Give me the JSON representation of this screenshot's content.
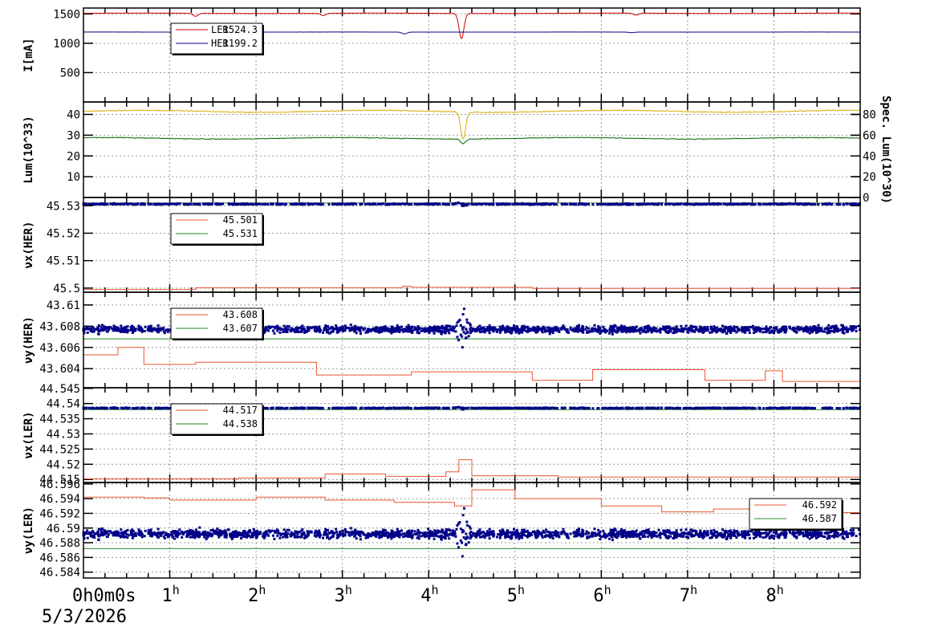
{
  "colors": {
    "ler": "#cc0000",
    "her": "#000080",
    "ref": "#ee5533",
    "green": "#228822",
    "lum_total": "#ddaa00",
    "lum_spec": "#006600",
    "points": "#000088",
    "grid": "#999999"
  },
  "date_label": "5/3/2026",
  "chart_data": [
    {
      "id": "current",
      "type": "line",
      "ylabel": "I[mA]",
      "ylim": [
        0,
        1600
      ],
      "yticks": [
        500,
        1000,
        1500
      ],
      "legend": {
        "position": "top-left",
        "entries": [
          {
            "name": "LER",
            "value": "1524.3",
            "color": "ler"
          },
          {
            "name": "HER",
            "value": "1199.2",
            "color": "her"
          }
        ]
      },
      "series": [
        {
          "name": "LER",
          "base": 1510,
          "noise": 6,
          "dips": [
            [
              4.38,
              1080
            ],
            [
              1.3,
              1460
            ],
            [
              2.78,
              1470
            ],
            [
              6.4,
              1480
            ]
          ],
          "color": "ler"
        },
        {
          "name": "HER",
          "base": 1190,
          "noise": 1,
          "dips": [
            [
              3.72,
              1160
            ],
            [
              6.35,
              1180
            ]
          ],
          "color": "her"
        }
      ]
    },
    {
      "id": "luminosity",
      "type": "line",
      "ylabel": "Lum(10^33)",
      "ylabel_right": "Spec. Lum(10^30)",
      "ylim": [
        0,
        46
      ],
      "yticks": [
        10,
        20,
        30,
        40
      ],
      "y2lim": [
        0,
        92
      ],
      "y2ticks": [
        0,
        20,
        40,
        60,
        80
      ],
      "series": [
        {
          "name": "lum_total",
          "base": 41.5,
          "noise": 0.8,
          "dips": [
            [
              4.4,
              28
            ]
          ],
          "color": "lum_total"
        },
        {
          "name": "lum_spec",
          "base": 28.5,
          "noise": 0.6,
          "dips": [
            [
              4.4,
              26
            ]
          ],
          "color": "lum_spec"
        }
      ]
    },
    {
      "id": "nux_her",
      "type": "scatter",
      "ylabel": "νx(HER)",
      "ylim": [
        45.4985,
        45.533
      ],
      "yticks": [
        "45.5",
        "45.51",
        "45.52",
        "45.53"
      ],
      "legend": {
        "position": "top-left",
        "entries": [
          {
            "value": "45.501",
            "color": "ref"
          },
          {
            "value": "45.531",
            "color": "green"
          }
        ]
      },
      "meas": {
        "base": 45.5306,
        "noise": 0.0003
      },
      "ref_line": [
        [
          0,
          45.4995
        ],
        [
          1.3,
          45.5001
        ],
        [
          3.7,
          45.5007
        ],
        [
          3.8,
          45.5003
        ],
        [
          5.2,
          45.4999
        ],
        [
          9,
          45.4999
        ]
      ],
      "green_line": 45.531
    },
    {
      "id": "nuy_her",
      "type": "scatter",
      "ylabel": "νy(HER)",
      "ylim": [
        43.6022,
        43.6112
      ],
      "yticks": [
        "43.604",
        "43.606",
        "43.608",
        "43.61"
      ],
      "legend": {
        "position": "top-left",
        "entries": [
          {
            "value": "43.608",
            "color": "ref"
          },
          {
            "value": "43.607",
            "color": "green"
          }
        ]
      },
      "meas": {
        "base": 43.6077,
        "noise": 0.0005
      },
      "ref_line": [
        [
          0,
          43.6053
        ],
        [
          0.4,
          43.606
        ],
        [
          0.7,
          43.6044
        ],
        [
          1.25,
          43.6044
        ],
        [
          1.3,
          43.6046
        ],
        [
          2.7,
          43.6034
        ],
        [
          3.8,
          43.6037
        ],
        [
          4.6,
          43.6037
        ],
        [
          5.2,
          43.6029
        ],
        [
          5.9,
          43.6039
        ],
        [
          7.2,
          43.6029
        ],
        [
          7.9,
          43.6038
        ],
        [
          8.1,
          43.6028
        ],
        [
          9,
          43.6028
        ]
      ],
      "green_line": 43.6068
    },
    {
      "id": "nux_ler",
      "type": "scatter",
      "ylabel": "νx(LER)",
      "ylim": [
        44.514,
        44.5452
      ],
      "yticks": [
        "44.515",
        "44.52",
        "44.525",
        "44.53",
        "44.535",
        "44.54",
        "44.545"
      ],
      "legend": {
        "position": "top-left",
        "entries": [
          {
            "value": "44.517",
            "color": "ref"
          },
          {
            "value": "44.538",
            "color": "green"
          }
        ]
      },
      "meas": {
        "base": 44.5385,
        "noise": 0.0002
      },
      "ref_line": [
        [
          0,
          44.5152
        ],
        [
          1.8,
          44.5155
        ],
        [
          2.8,
          44.5168
        ],
        [
          3.5,
          44.516
        ],
        [
          4.2,
          44.5175
        ],
        [
          4.35,
          44.5215
        ],
        [
          4.5,
          44.5162
        ],
        [
          5.5,
          44.5158
        ],
        [
          9,
          44.5158
        ]
      ],
      "green_line": 44.538
    },
    {
      "id": "nuy_ler",
      "type": "scatter",
      "ylabel": "νy(LER)",
      "ylim": [
        46.5832,
        46.5962
      ],
      "yticks": [
        "46.584",
        "46.586",
        "46.588",
        "46.59",
        "46.592",
        "46.594",
        "46.596"
      ],
      "legend": {
        "position": "top-right",
        "entries": [
          {
            "value": "46.592",
            "color": "ref"
          },
          {
            "value": "46.587",
            "color": "green"
          }
        ]
      },
      "meas": {
        "base": 46.5892,
        "noise": 0.0009
      },
      "ref_line": [
        [
          0,
          46.5942
        ],
        [
          0.7,
          46.5941
        ],
        [
          1.0,
          46.5938
        ],
        [
          2.0,
          46.5942
        ],
        [
          2.8,
          46.5938
        ],
        [
          3.6,
          46.5935
        ],
        [
          4.3,
          46.593
        ],
        [
          4.5,
          46.5952
        ],
        [
          5.0,
          46.594
        ],
        [
          6.0,
          46.593
        ],
        [
          6.7,
          46.5922
        ],
        [
          7.3,
          46.5926
        ],
        [
          8.1,
          46.5921
        ],
        [
          9,
          46.5921
        ]
      ],
      "green_line": 46.5872
    }
  ],
  "x_axis": {
    "start_label": "0h0m0s",
    "ticks": [
      {
        "label": "1",
        "unit": "h",
        "t": 1
      },
      {
        "label": "2",
        "unit": "h",
        "t": 2
      },
      {
        "label": "3",
        "unit": "h",
        "t": 3
      },
      {
        "label": "4",
        "unit": "h",
        "t": 4
      },
      {
        "label": "5",
        "unit": "h",
        "t": 5
      },
      {
        "label": "6",
        "unit": "h",
        "t": 6
      },
      {
        "label": "7",
        "unit": "h",
        "t": 7
      },
      {
        "label": "8",
        "unit": "h",
        "t": 8
      }
    ],
    "xlim": [
      0,
      9
    ]
  }
}
